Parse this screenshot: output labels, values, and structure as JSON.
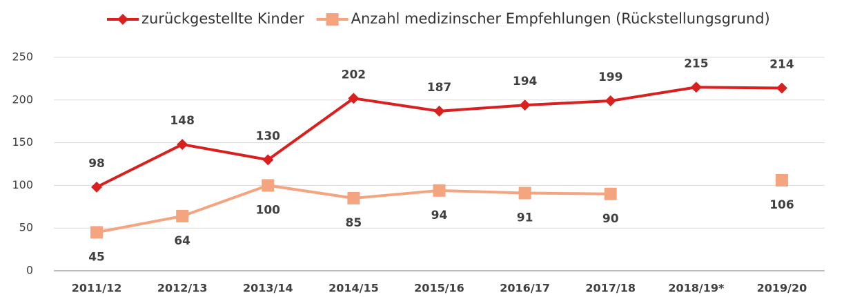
{
  "chart_data": {
    "type": "line",
    "categories": [
      "2011/12",
      "2012/13",
      "2013/14",
      "2014/15",
      "2015/16",
      "2016/17",
      "2017/18",
      "2018/19*",
      "2019/20"
    ],
    "series": [
      {
        "name": "zurückgestellte Kinder",
        "color": "#d9201f",
        "marker": "diamond",
        "label_position": "above",
        "values": [
          98,
          148,
          130,
          202,
          187,
          194,
          199,
          215,
          214
        ]
      },
      {
        "name": "Anzahl medizinscher Empfehlungen (Rückstellungsgrund)",
        "color": "#f4a580",
        "marker": "square",
        "label_position": "below",
        "values": [
          45,
          64,
          100,
          85,
          94,
          91,
          90,
          null,
          106
        ]
      }
    ],
    "ylim": [
      0,
      250
    ],
    "yticks": [
      0,
      50,
      100,
      150,
      200,
      250
    ],
    "grid": true,
    "legend": "top"
  }
}
